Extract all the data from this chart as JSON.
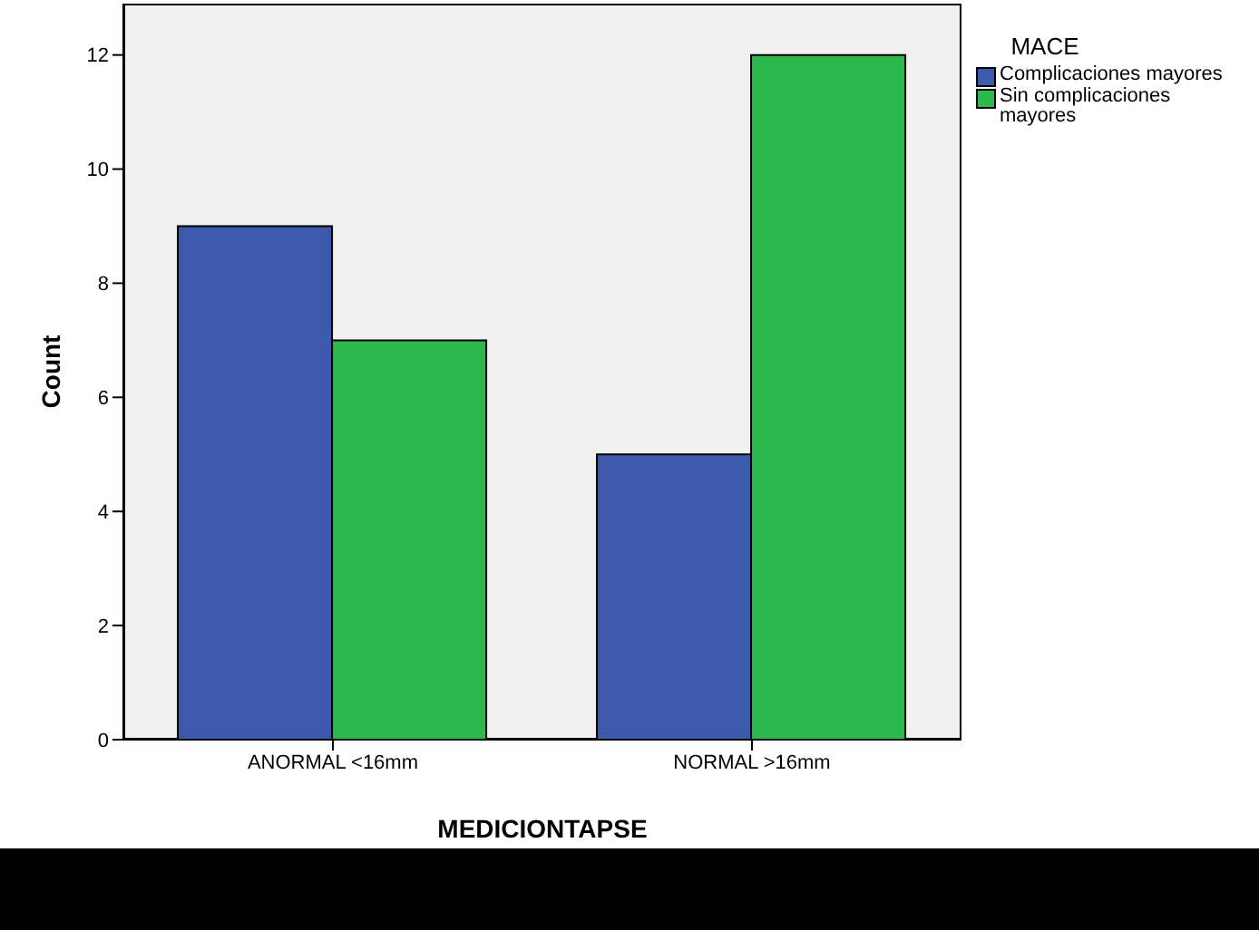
{
  "chart_data": {
    "type": "bar",
    "xlabel": "MEDICIONTAPSE",
    "ylabel": "Count",
    "legend_title": "MACE",
    "categories": [
      "ANORMAL <16mm",
      "NORMAL >16mm"
    ],
    "series": [
      {
        "name": "Complicaciones mayores",
        "color": "#3d59ab",
        "values": [
          9,
          5
        ]
      },
      {
        "name": "Sin complicaciones mayores",
        "color": "#2db84d",
        "values": [
          7,
          12
        ]
      }
    ],
    "ylim": [
      0,
      12.9
    ],
    "yticks": [
      0,
      2,
      4,
      6,
      8,
      10,
      12
    ],
    "grid": false,
    "legend": "top right"
  }
}
